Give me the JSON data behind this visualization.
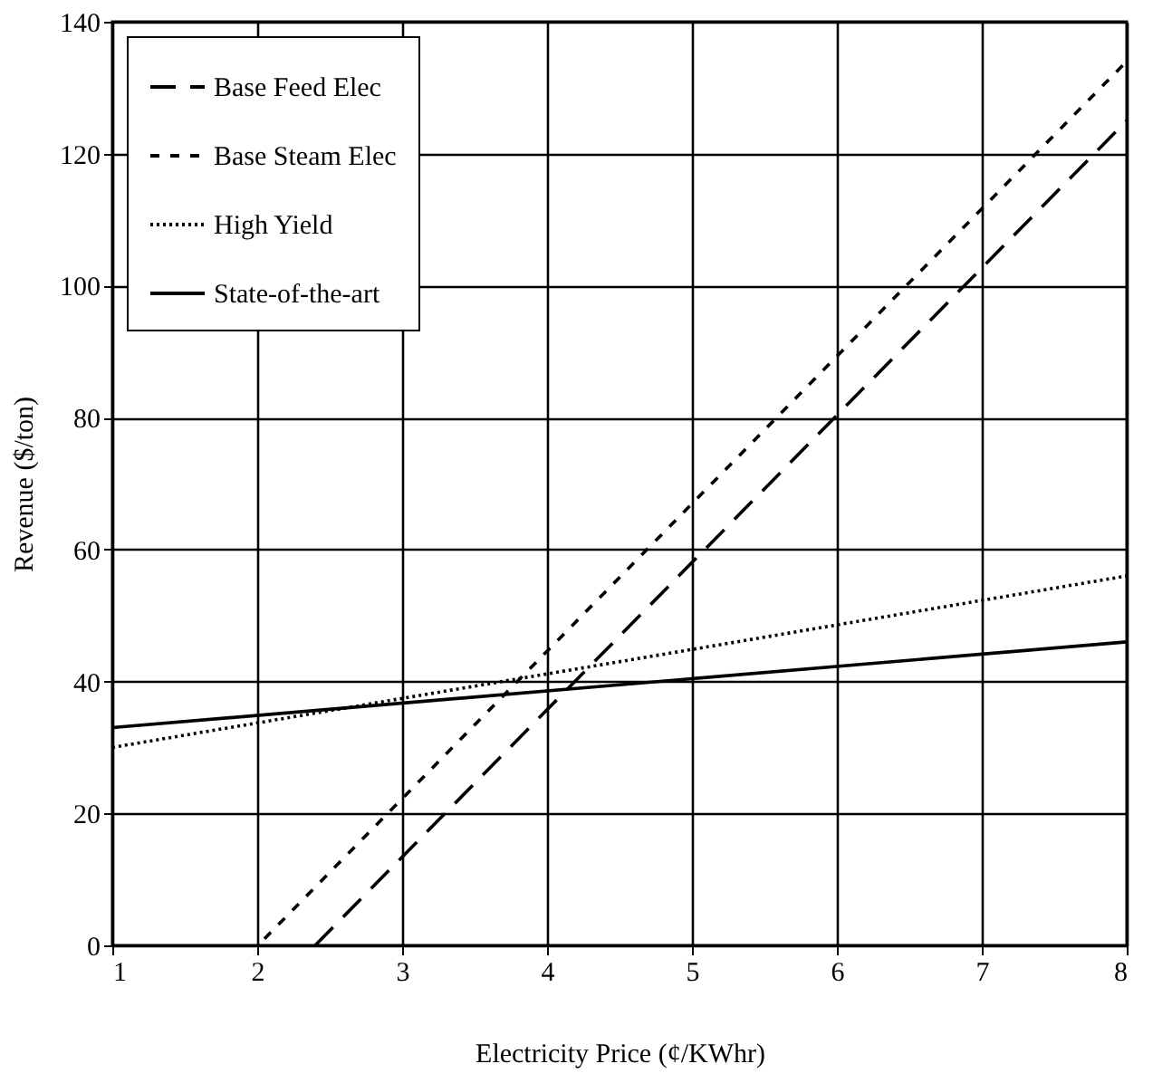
{
  "chart_data": {
    "type": "line",
    "xlabel": "Electricity Price (¢/KWhr)",
    "ylabel": "Revenue ($/ton)",
    "xlim": [
      1,
      8
    ],
    "xticks": [
      1,
      2,
      3,
      4,
      5,
      6,
      7,
      8
    ],
    "ylim": [
      0,
      140
    ],
    "yticks": [
      0,
      20,
      40,
      60,
      80,
      100,
      120,
      140
    ],
    "grid": true,
    "legend": "top left",
    "marker": "none",
    "series": [
      {
        "name": "Base Feed Elec",
        "color": "#000000",
        "line_style": "dashed",
        "x": [
          2.4,
          8
        ],
        "values": [
          0,
          125
        ]
      },
      {
        "name": "Base Steam Elec",
        "color": "#000000",
        "line_style": "dashed",
        "x": [
          2.05,
          8
        ],
        "values": [
          1,
          134
        ]
      },
      {
        "name": "High Yield",
        "color": "#000000",
        "line_style": "dotted",
        "x": [
          1,
          8
        ],
        "values": [
          30,
          56
        ]
      },
      {
        "name": "State-of-the-art",
        "color": "#000000",
        "line_style": "solid",
        "x": [
          1,
          8
        ],
        "values": [
          33,
          46
        ]
      }
    ]
  }
}
